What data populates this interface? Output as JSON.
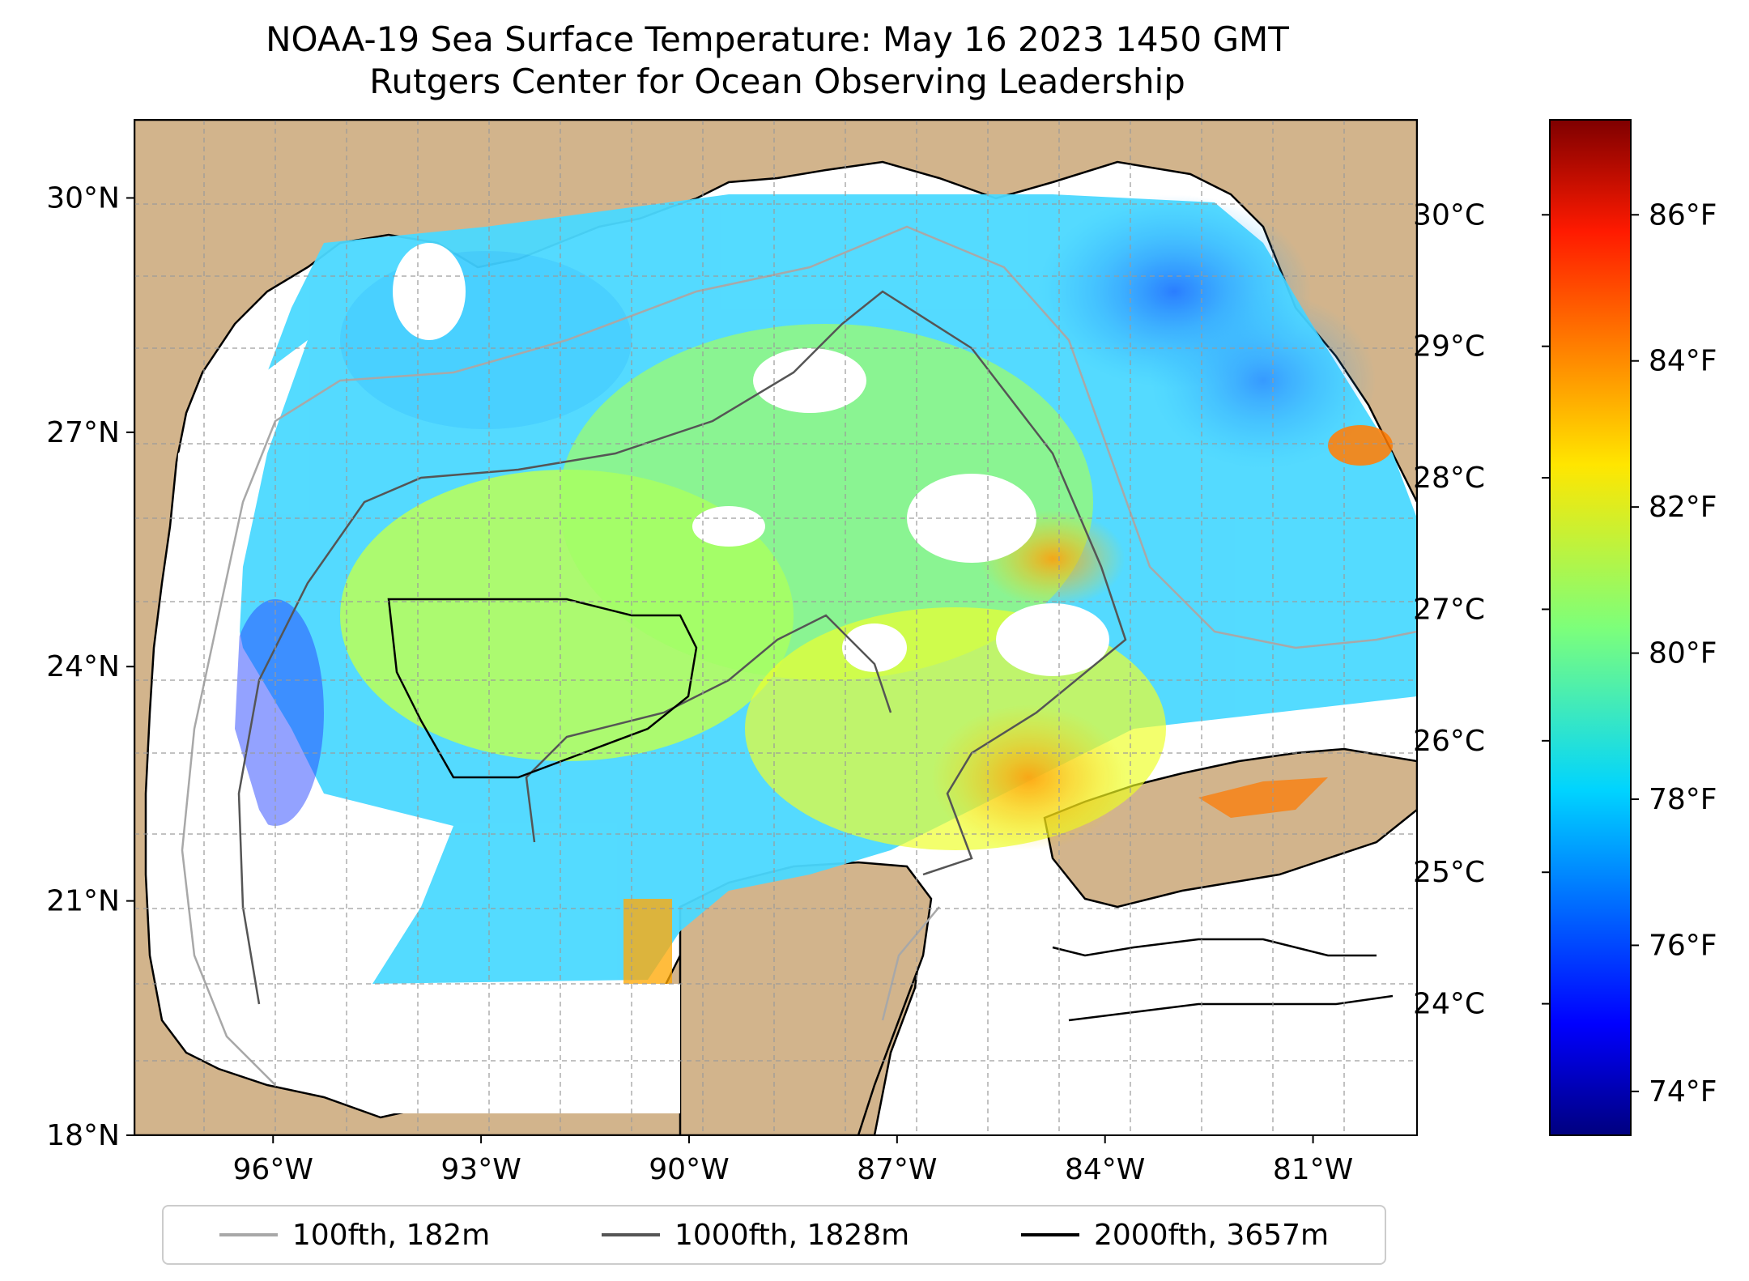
{
  "title": {
    "line1": "NOAA-19 Sea Surface Temperature: May 16 2023 1450 GMT",
    "line2": "Rutgers Center for Ocean Observing Leadership"
  },
  "map": {
    "extent": {
      "lon_min": -98.0,
      "lon_max": -79.5,
      "lat_min": 18.0,
      "lat_max": 31.0
    },
    "lat_ticks": [
      {
        "value": 30,
        "label": "30°N"
      },
      {
        "value": 27,
        "label": "27°N"
      },
      {
        "value": 24,
        "label": "24°N"
      },
      {
        "value": 21,
        "label": "21°N"
      },
      {
        "value": 18,
        "label": "18°N"
      }
    ],
    "lon_ticks": [
      {
        "value": -96,
        "label": "96°W"
      },
      {
        "value": -93,
        "label": "93°W"
      },
      {
        "value": -90,
        "label": "90°W"
      },
      {
        "value": -87,
        "label": "87°W"
      },
      {
        "value": -84,
        "label": "84°W"
      },
      {
        "value": -81,
        "label": "81°W"
      }
    ],
    "gridlines": true,
    "land_color": "#d2b48c",
    "water_nodata_color": "#ffffff"
  },
  "colorbar": {
    "colormap": "jet",
    "fahrenheit_range": [
      73.4,
      87.3
    ],
    "celsius_ticks": [
      {
        "value": 30,
        "label": "30°C"
      },
      {
        "value": 29,
        "label": "29°C"
      },
      {
        "value": 28,
        "label": "28°C"
      },
      {
        "value": 27,
        "label": "27°C"
      },
      {
        "value": 26,
        "label": "26°C"
      },
      {
        "value": 25,
        "label": "25°C"
      },
      {
        "value": 24,
        "label": "24°C"
      }
    ],
    "fahrenheit_ticks": [
      {
        "value": 86,
        "label": "86°F"
      },
      {
        "value": 84,
        "label": "84°F"
      },
      {
        "value": 82,
        "label": "82°F"
      },
      {
        "value": 80,
        "label": "80°F"
      },
      {
        "value": 78,
        "label": "78°F"
      },
      {
        "value": 76,
        "label": "76°F"
      },
      {
        "value": 74,
        "label": "74°F"
      }
    ]
  },
  "legend": {
    "placement": "bottom-center",
    "items": [
      {
        "label": "100fth, 182m",
        "color": "#a8a8a8"
      },
      {
        "label": "1000fth, 1828m",
        "color": "#555555"
      },
      {
        "label": "2000fth, 3657m",
        "color": "#000000"
      }
    ]
  }
}
